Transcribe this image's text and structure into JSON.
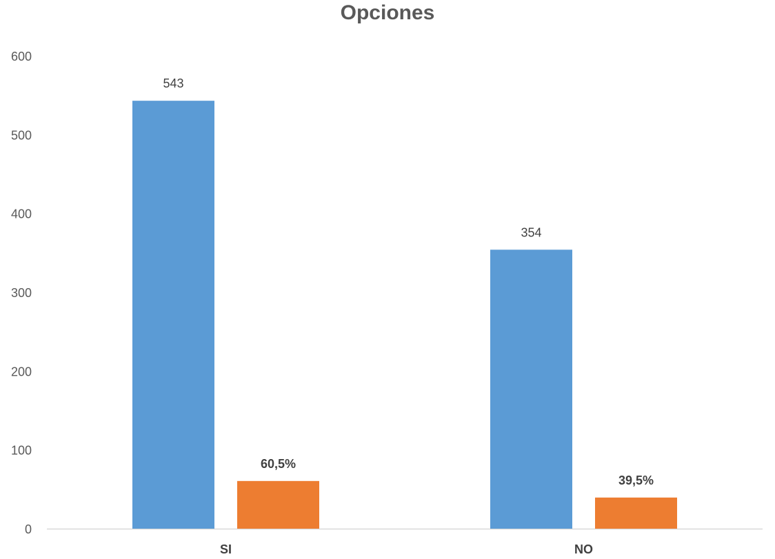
{
  "chart_data": {
    "type": "bar",
    "title": "Opciones",
    "categories": [
      "SI",
      "NO"
    ],
    "series": [
      {
        "values": [
          543,
          354
        ],
        "labels": [
          "543",
          "354"
        ],
        "color": "#5B9BD5"
      },
      {
        "values": [
          60.5,
          39.5
        ],
        "labels": [
          "60,5%",
          "39,5%"
        ],
        "color": "#ED7D31"
      }
    ],
    "ylim": [
      0,
      600
    ],
    "yticks": [
      "0",
      "100",
      "200",
      "300",
      "400",
      "500",
      "600"
    ],
    "grid": false,
    "legend": "none",
    "axis_color": "#D9D9D9"
  }
}
